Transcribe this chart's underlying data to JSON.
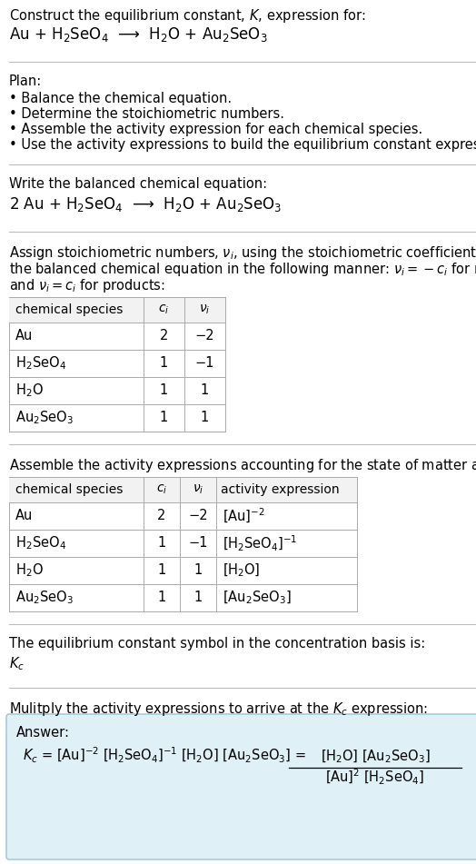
{
  "title_line1": "Construct the equilibrium constant, $K$, expression for:",
  "title_line2": "Au + H$_2$SeO$_4$  ⟶  H$_2$O + Au$_2$SeO$_3$",
  "plan_header": "Plan:",
  "plan_bullets": [
    "• Balance the chemical equation.",
    "• Determine the stoichiometric numbers.",
    "• Assemble the activity expression for each chemical species.",
    "• Use the activity expressions to build the equilibrium constant expression."
  ],
  "balanced_header": "Write the balanced chemical equation:",
  "balanced_eq": "2 Au + H$_2$SeO$_4$  ⟶  H$_2$O + Au$_2$SeO$_3$",
  "stoich_intro": "Assign stoichiometric numbers, $\\nu_i$, using the stoichiometric coefficients, $c_i$, from\nthe balanced chemical equation in the following manner: $\\nu_i = -c_i$ for reactants\nand $\\nu_i = c_i$ for products:",
  "table1_rows": [
    [
      "Au",
      "2",
      "−2"
    ],
    [
      "H$_2$SeO$_4$",
      "1",
      "−1"
    ],
    [
      "H$_2$O",
      "1",
      "1"
    ],
    [
      "Au$_2$SeO$_3$",
      "1",
      "1"
    ]
  ],
  "activity_intro": "Assemble the activity expressions accounting for the state of matter and $\\nu_i$:",
  "table2_rows": [
    [
      "Au",
      "2",
      "−2",
      "[Au]$^{-2}$"
    ],
    [
      "H$_2$SeO$_4$",
      "1",
      "−1",
      "[H$_2$SeO$_4$]$^{-1}$"
    ],
    [
      "H$_2$O",
      "1",
      "1",
      "[H$_2$O]"
    ],
    [
      "Au$_2$SeO$_3$",
      "1",
      "1",
      "[Au$_2$SeO$_3$]"
    ]
  ],
  "kc_header": "The equilibrium constant symbol in the concentration basis is:",
  "kc_symbol": "$K_c$",
  "multiply_header": "Mulitply the activity expressions to arrive at the $K_c$ expression:",
  "answer_label": "Answer:",
  "kc_eq_line": "$K_c$ = [Au]$^{-2}$ [H$_2$SeO$_4$]$^{-1}$ [H$_2$O] [Au$_2$SeO$_3$] =",
  "frac_num": "[H$_2$O] [Au$_2$SeO$_3$]",
  "frac_den": "[Au]$^2$ [H$_2$SeO$_4$]",
  "bg": "#ffffff",
  "divider": "#bbbbbb",
  "table_border": "#aaaaaa",
  "header_bg": "#f2f2f2",
  "answer_bg": "#dff0f7",
  "answer_border": "#99c4d8",
  "black": "#000000",
  "fs": 10.5
}
